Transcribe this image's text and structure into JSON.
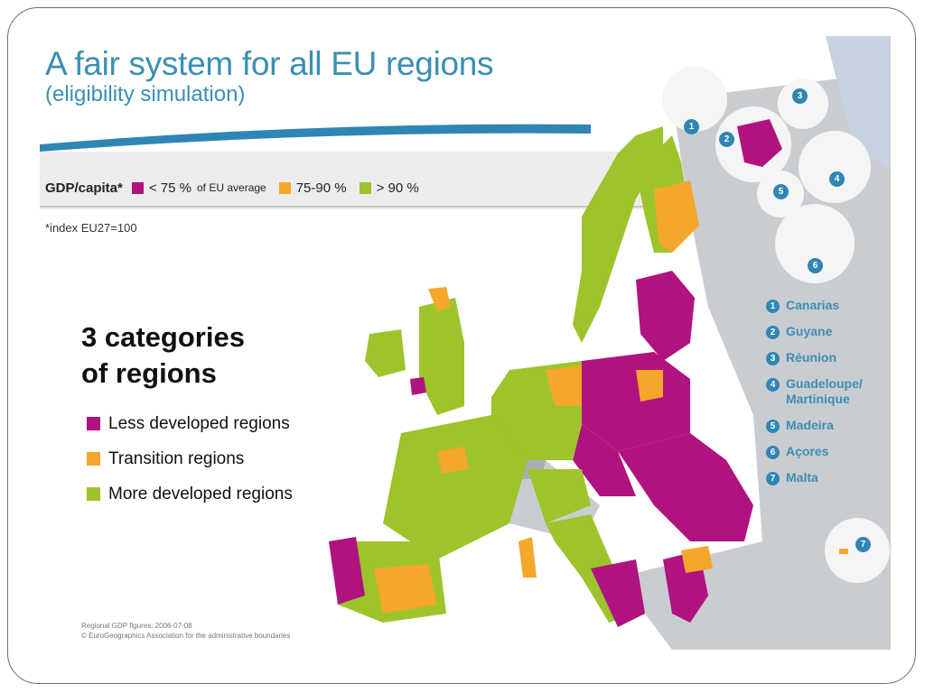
{
  "title": "A fair system for all EU regions",
  "subtitle": "(eligibility simulation)",
  "legend_bar": {
    "label": "GDP/capita*",
    "items": [
      {
        "text": "< 75 %",
        "small": "of EU average",
        "color": "#b0127f"
      },
      {
        "text": "75-90 %",
        "small": "",
        "color": "#f4a72a"
      },
      {
        "text": "> 90 %",
        "small": "",
        "color": "#9dc42b"
      }
    ]
  },
  "index_note": "*index EU27=100",
  "categories": {
    "title_line1": "3 categories",
    "title_line2": "of regions",
    "items": [
      {
        "label": "Less developed regions",
        "color": "#b0127f"
      },
      {
        "label": "Transition regions",
        "color": "#f4a72a"
      },
      {
        "label": "More developed regions",
        "color": "#9dc42b"
      }
    ]
  },
  "outermost_regions": [
    {
      "num": "1",
      "name": "Canarias"
    },
    {
      "num": "2",
      "name": "Guyane"
    },
    {
      "num": "3",
      "name": "Réunion"
    },
    {
      "num": "4",
      "name": "Guadeloupe/ Martinique"
    },
    {
      "num": "5",
      "name": "Madeira"
    },
    {
      "num": "6",
      "name": "Açores"
    },
    {
      "num": "7",
      "name": "Malta"
    }
  ],
  "source": {
    "line1": "Regional GDP figures: 2006-07-08",
    "line2": "© EuroGeographics Association for the administrative boundaries"
  }
}
